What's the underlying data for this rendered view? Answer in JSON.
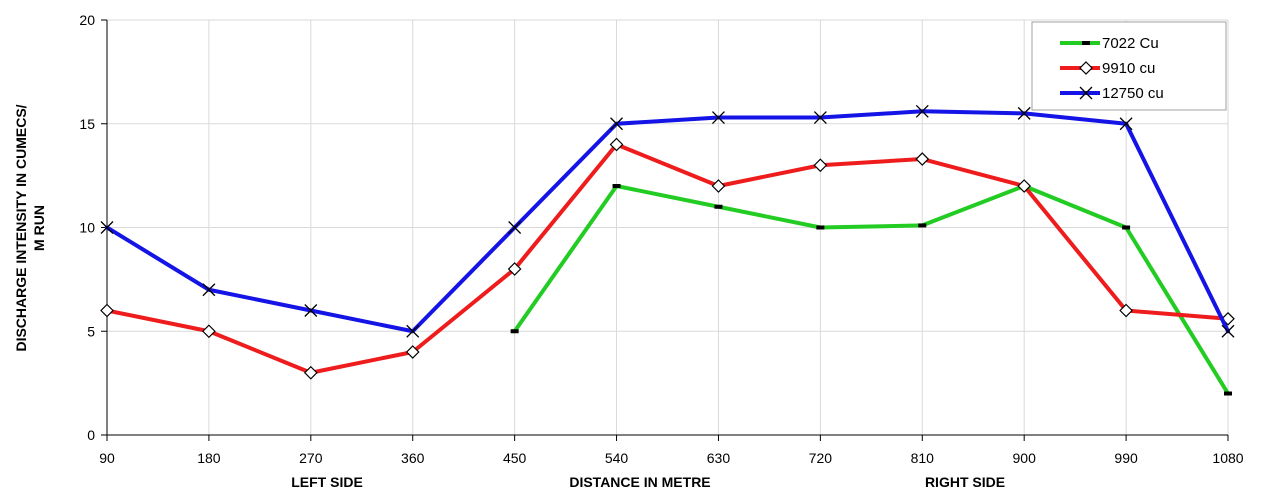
{
  "chart_data": {
    "type": "line",
    "title": "",
    "xlabel": "DISTANCE IN METRE",
    "ylabel_lines": [
      "DISCHARGE  INTENSITY IN  CUMECS/",
      "M RUN"
    ],
    "side_labels": {
      "left": "LEFT SIDE",
      "right": "RIGHT SIDE"
    },
    "categories": [
      "90",
      "180",
      "270",
      "360",
      "450",
      "540",
      "630",
      "720",
      "810",
      "900",
      "990",
      "1080"
    ],
    "x_ticks": [
      "90",
      "180",
      "270",
      "360",
      "450",
      "540",
      "630",
      "720",
      "810",
      "900",
      "990",
      "1080"
    ],
    "ylim": [
      0,
      20
    ],
    "y_ticks": [
      "0",
      "5",
      "10",
      "15",
      "20"
    ],
    "grid": true,
    "legend_position": "top-right",
    "series": [
      {
        "name": "7022 Cu",
        "color": "#22cc22",
        "marker": "dash",
        "values": [
          null,
          null,
          null,
          null,
          5,
          12,
          11,
          10,
          10.1,
          12,
          10,
          2
        ]
      },
      {
        "name": "9910 cu",
        "color": "#ee1c1c",
        "marker": "diamond",
        "values": [
          6,
          5,
          3,
          4,
          8,
          14,
          12,
          13,
          13.3,
          12,
          6,
          5.6
        ]
      },
      {
        "name": "12750 cu",
        "color": "#1414e6",
        "marker": "x",
        "values": [
          10,
          7,
          6,
          5,
          10,
          15,
          15.3,
          15.3,
          15.6,
          15.5,
          15,
          5
        ]
      }
    ]
  }
}
